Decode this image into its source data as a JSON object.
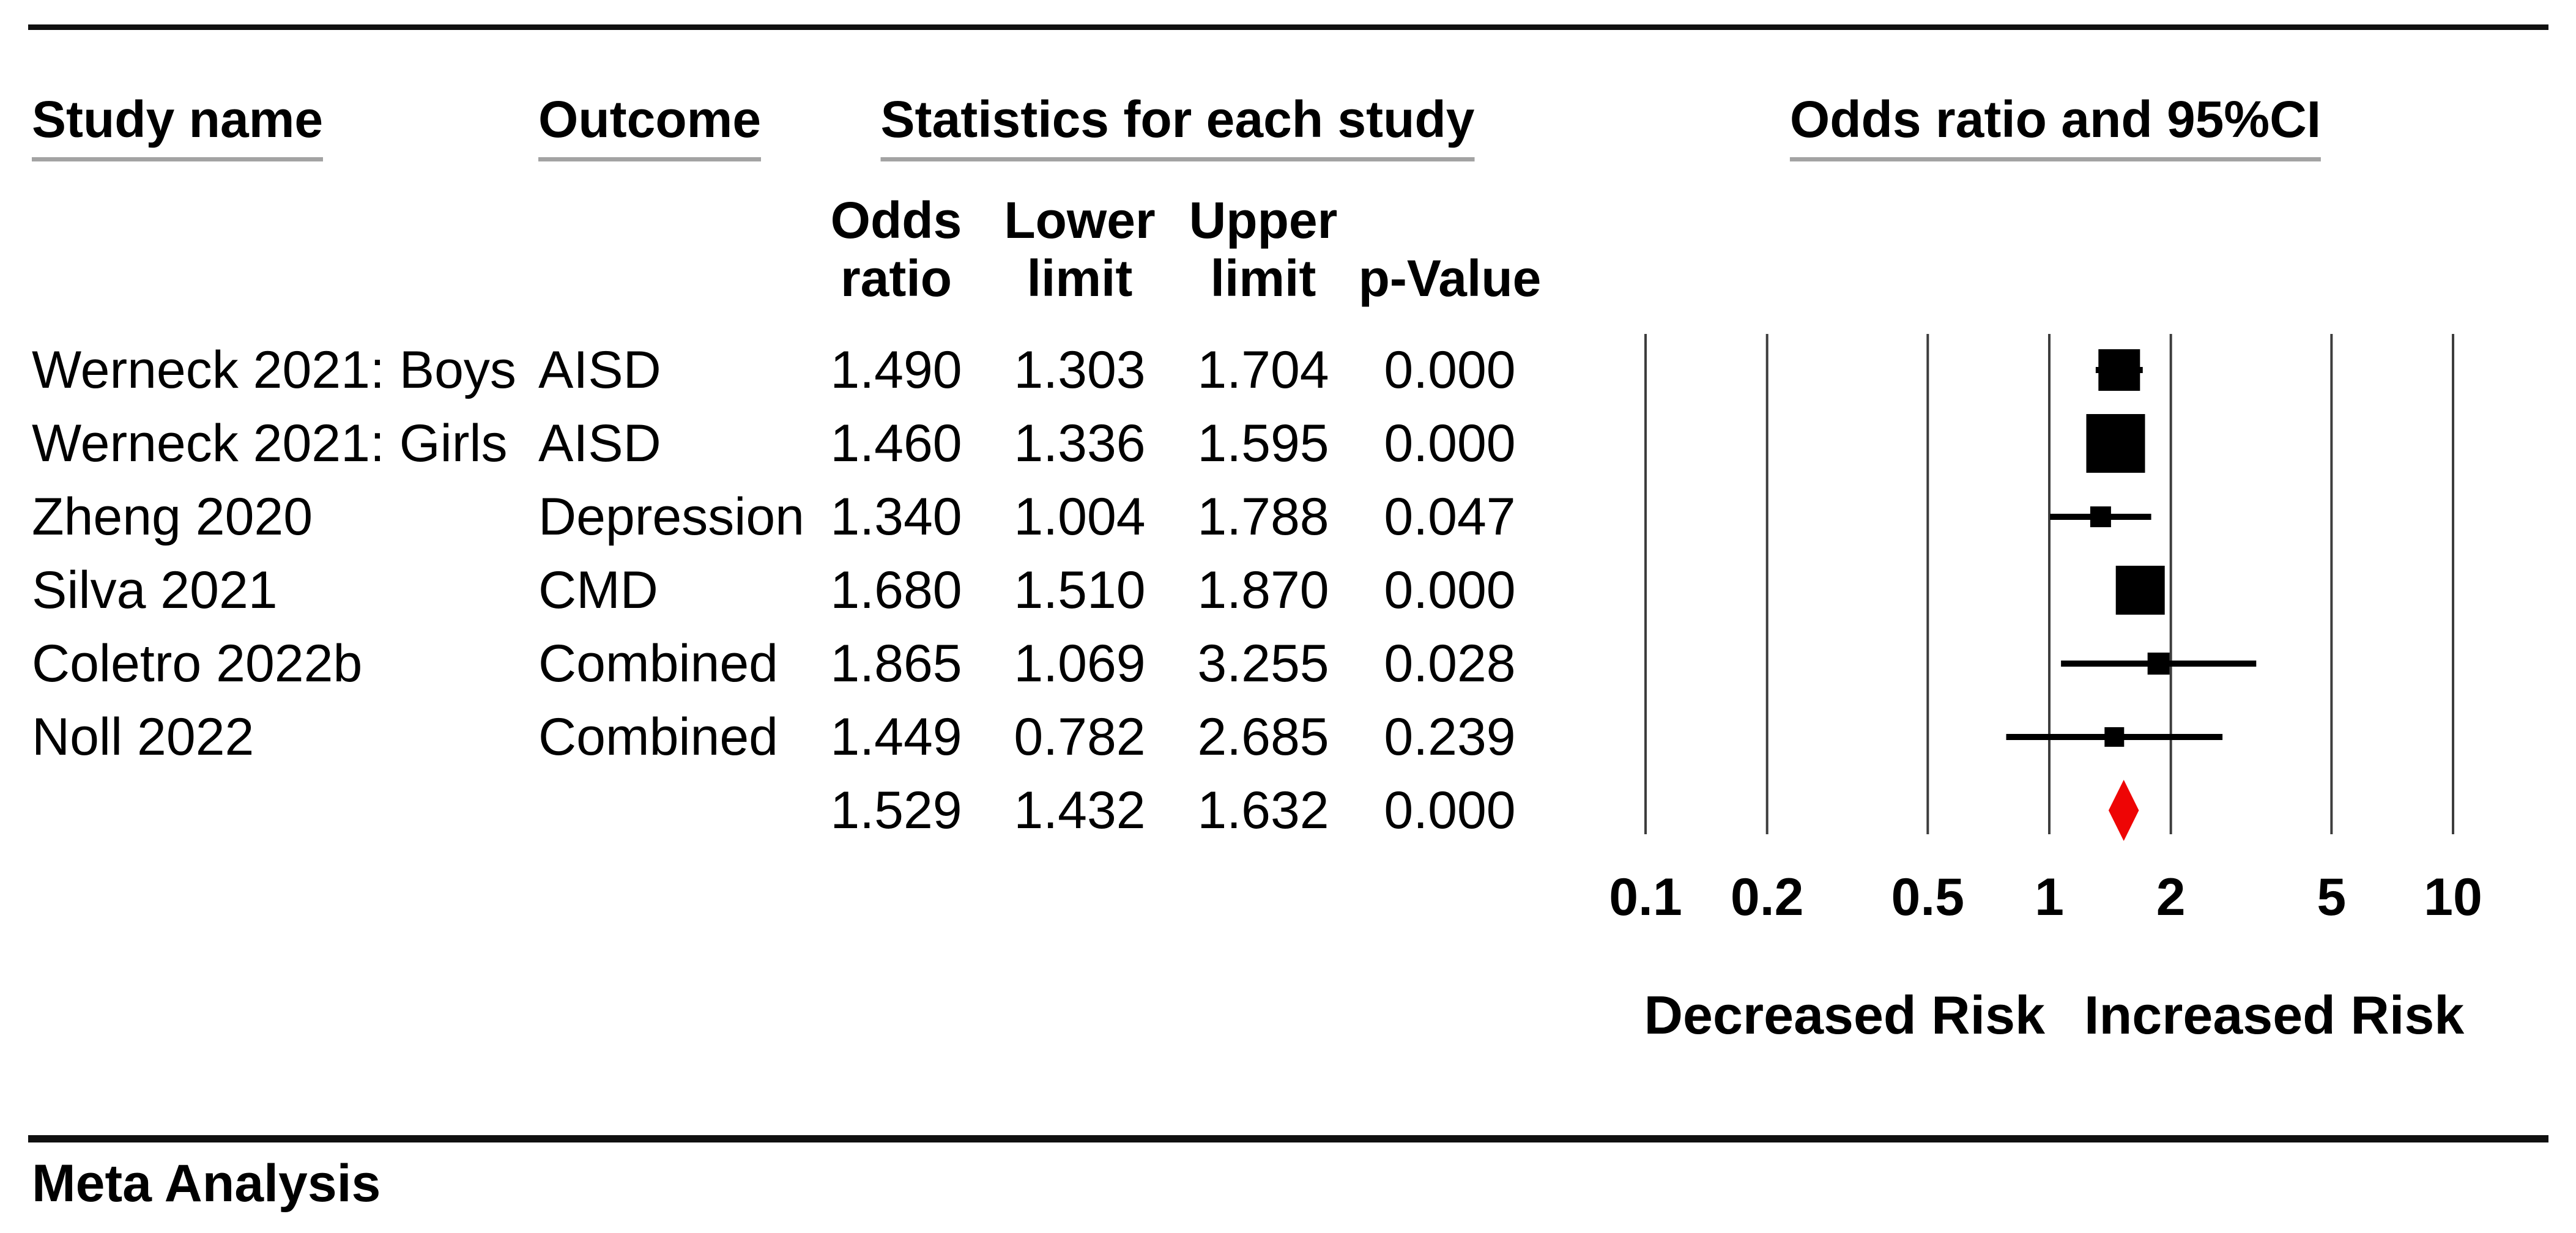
{
  "chart_data": {
    "type": "forest",
    "plot_title": "Odds ratio and 95%CI",
    "stats_group_title": "Statistics for each study",
    "column_headers": {
      "study": "Study name",
      "outcome": "Outcome",
      "odds_line1": "Odds",
      "odds_line2": "ratio",
      "lower_line1": "Lower",
      "lower_line2": "limit",
      "upper_line1": "Upper",
      "upper_line2": "limit",
      "p_value": "p-Value"
    },
    "x_scale": "log10",
    "x_range": [
      0.1,
      10
    ],
    "x_ticks": [
      "0.1",
      "0.2",
      "0.5",
      "1",
      "2",
      "5",
      "10"
    ],
    "x_axis_annotations": {
      "left": "Decreased Risk",
      "right": "Increased Risk"
    },
    "footer_label": "Meta Analysis",
    "studies": [
      {
        "study": "Werneck 2021: Boys",
        "outcome": "AISD",
        "odds_ratio": "1.490",
        "lower_limit": "1.303",
        "upper_limit": "1.704",
        "p_value": "0.000",
        "marker_size": 68
      },
      {
        "study": "Werneck 2021: Girls",
        "outcome": "AISD",
        "odds_ratio": "1.460",
        "lower_limit": "1.336",
        "upper_limit": "1.595",
        "p_value": "0.000",
        "marker_size": 96
      },
      {
        "study": "Zheng 2020",
        "outcome": "Depression",
        "odds_ratio": "1.340",
        "lower_limit": "1.004",
        "upper_limit": "1.788",
        "p_value": "0.047",
        "marker_size": 34
      },
      {
        "study": "Silva 2021",
        "outcome": "CMD",
        "odds_ratio": "1.680",
        "lower_limit": "1.510",
        "upper_limit": "1.870",
        "p_value": "0.000",
        "marker_size": 80
      },
      {
        "study": "Coletro 2022b",
        "outcome": "Combined",
        "odds_ratio": "1.865",
        "lower_limit": "1.069",
        "upper_limit": "3.255",
        "p_value": "0.028",
        "marker_size": 36
      },
      {
        "study": "Noll 2022",
        "outcome": "Combined",
        "odds_ratio": "1.449",
        "lower_limit": "0.782",
        "upper_limit": "2.685",
        "p_value": "0.239",
        "marker_size": 32
      }
    ],
    "summary": {
      "odds_ratio": "1.529",
      "lower_limit": "1.432",
      "upper_limit": "1.632",
      "p_value": "0.000"
    },
    "colors": {
      "marker": "#000000",
      "summary_diamond": "#ee0505",
      "gridline": "#3d3d3d",
      "rule": "#101010",
      "header_underline": "#a3a3a3",
      "text": "#000000",
      "background": "#ffffff"
    }
  }
}
